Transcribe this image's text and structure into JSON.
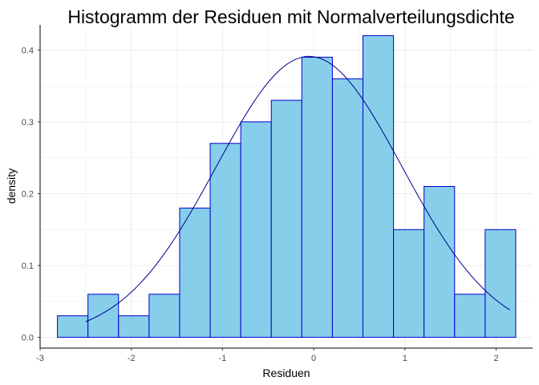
{
  "chart_data": {
    "type": "bar",
    "title": "Histogramm der Residuen mit Normalverteilungsdichte",
    "xlabel": "Residuen",
    "ylabel": "density",
    "xlim": [
      -3.0,
      2.4
    ],
    "ylim": [
      -0.015,
      0.435
    ],
    "grid": true,
    "x_ticks": [
      -3,
      -2,
      -1,
      0,
      1,
      2
    ],
    "x_tick_labels": [
      "-3",
      "-2",
      "-1",
      "0",
      "1",
      "2"
    ],
    "y_ticks": [
      0.0,
      0.1,
      0.2,
      0.3,
      0.4
    ],
    "y_tick_labels": [
      "0.0",
      "0.1",
      "0.2",
      "0.3",
      "0.4"
    ],
    "bins": [
      {
        "x0": -2.81,
        "x1": -2.475,
        "density": 0.03
      },
      {
        "x0": -2.475,
        "x1": -2.14,
        "density": 0.06
      },
      {
        "x0": -2.14,
        "x1": -1.805,
        "density": 0.03
      },
      {
        "x0": -1.805,
        "x1": -1.47,
        "density": 0.06
      },
      {
        "x0": -1.47,
        "x1": -1.135,
        "density": 0.18
      },
      {
        "x0": -1.135,
        "x1": -0.8,
        "density": 0.27
      },
      {
        "x0": -0.8,
        "x1": -0.465,
        "density": 0.3
      },
      {
        "x0": -0.465,
        "x1": -0.13,
        "density": 0.33
      },
      {
        "x0": -0.13,
        "x1": 0.205,
        "density": 0.39
      },
      {
        "x0": 0.205,
        "x1": 0.54,
        "density": 0.36
      },
      {
        "x0": 0.54,
        "x1": 0.875,
        "density": 0.42
      },
      {
        "x0": 0.875,
        "x1": 1.21,
        "density": 0.15
      },
      {
        "x0": 1.21,
        "x1": 1.545,
        "density": 0.21
      },
      {
        "x0": 1.545,
        "x1": 1.88,
        "density": 0.06
      },
      {
        "x0": 1.88,
        "x1": 2.215,
        "density": 0.15
      }
    ],
    "density_curve": {
      "distribution": "normal",
      "mean": -0.05,
      "sd": 1.02,
      "x_range": [
        -2.5,
        2.15
      ]
    },
    "colors": {
      "bar_fill": "#87CEEB",
      "bar_outline": "#0000CD",
      "curve": "#00008B",
      "grid": "#EBEBEB",
      "axis": "#000000"
    }
  }
}
